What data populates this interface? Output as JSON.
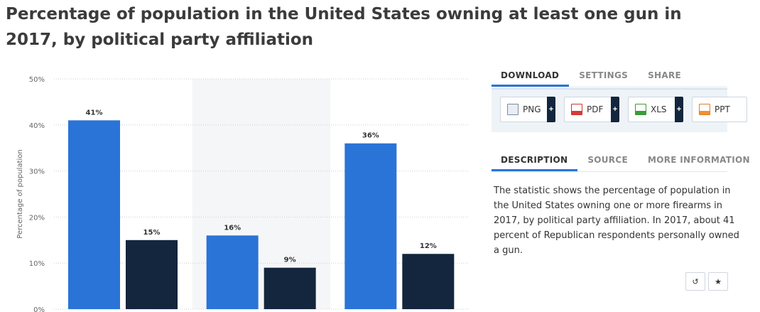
{
  "title": "Percentage of population in the United States owning at least one gun in 2017, by political party affiliation",
  "chart_data": {
    "type": "bar",
    "categories": [
      "",
      "",
      ""
    ],
    "series": [
      {
        "values": [
          41,
          16,
          36
        ],
        "color": "#2a74d8"
      },
      {
        "values": [
          15,
          9,
          12
        ],
        "color": "#13263e"
      }
    ],
    "data_labels": [
      [
        "41%",
        "16%",
        "36%"
      ],
      [
        "15%",
        "9%",
        "12%"
      ]
    ],
    "ylabel": "Percentage of population",
    "yticks": [
      "0%",
      "10%",
      "20%",
      "30%",
      "40%",
      "50%"
    ],
    "ylim": [
      0,
      50
    ],
    "grid": true
  },
  "panel": {
    "tabs": [
      "DOWNLOAD",
      "SETTINGS",
      "SHARE"
    ],
    "downloads": [
      {
        "label": "PNG",
        "icon": "png-file-icon"
      },
      {
        "label": "PDF",
        "icon": "pdf-file-icon"
      },
      {
        "label": "XLS",
        "icon": "xls-file-icon"
      },
      {
        "label": "PPT",
        "icon": "ppt-file-icon"
      }
    ],
    "plus": "+",
    "desc_tabs": [
      "DESCRIPTION",
      "SOURCE",
      "MORE INFORMATION"
    ],
    "description_lines": [
      "The statistic shows the percentage of population in",
      "the United States owning one or more firearms in",
      "2017, by political party affiliation. In 2017, about 41",
      "percent of Republican respondents personally owned",
      "a gun."
    ],
    "tools": [
      {
        "glyph": "↺",
        "icon": "reset-icon"
      },
      {
        "glyph": "★",
        "icon": "star-icon"
      }
    ]
  }
}
